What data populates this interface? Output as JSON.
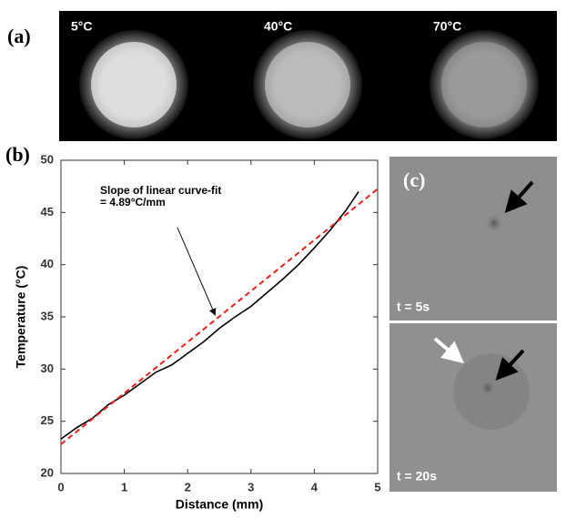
{
  "panel_a": {
    "label": "(a)",
    "captions": [
      "5°C",
      "40°C",
      "70°C"
    ]
  },
  "chart_data": {
    "type": "line",
    "panel_label": "(b)",
    "x_label": "Distance (mm)",
    "y_label": "Temperature (°C)",
    "annotation": [
      "Slope of linear curve-fit",
      "= 4.89°C/mm"
    ],
    "series": [
      {
        "color": "#000000",
        "dash": false,
        "x": [
          0,
          0.25,
          0.5,
          0.75,
          1,
          1.25,
          1.5,
          1.75,
          2,
          2.25,
          2.5,
          2.75,
          3,
          3.25,
          3.5,
          3.75,
          4,
          4.25,
          4.5,
          4.7
        ],
        "values": [
          23.3,
          24.4,
          25.3,
          26.6,
          27.5,
          28.6,
          29.7,
          30.4,
          31.5,
          32.6,
          33.9,
          35.0,
          36.0,
          37.3,
          38.6,
          40.0,
          41.6,
          43.3,
          45.2,
          47.0
        ]
      },
      {
        "color": "#e8201a",
        "dash": true,
        "x": [
          0,
          5
        ],
        "values": [
          22.8,
          47.25
        ]
      }
    ],
    "xlim": [
      0,
      5
    ],
    "xticks": [
      0,
      1,
      2,
      3,
      4,
      5
    ],
    "ylim": [
      20,
      50
    ],
    "yticks": [
      20,
      25,
      30,
      35,
      40,
      45,
      50
    ]
  },
  "panel_c": {
    "label": "(c)",
    "captions": [
      "t = 5s",
      "t = 20s"
    ]
  }
}
